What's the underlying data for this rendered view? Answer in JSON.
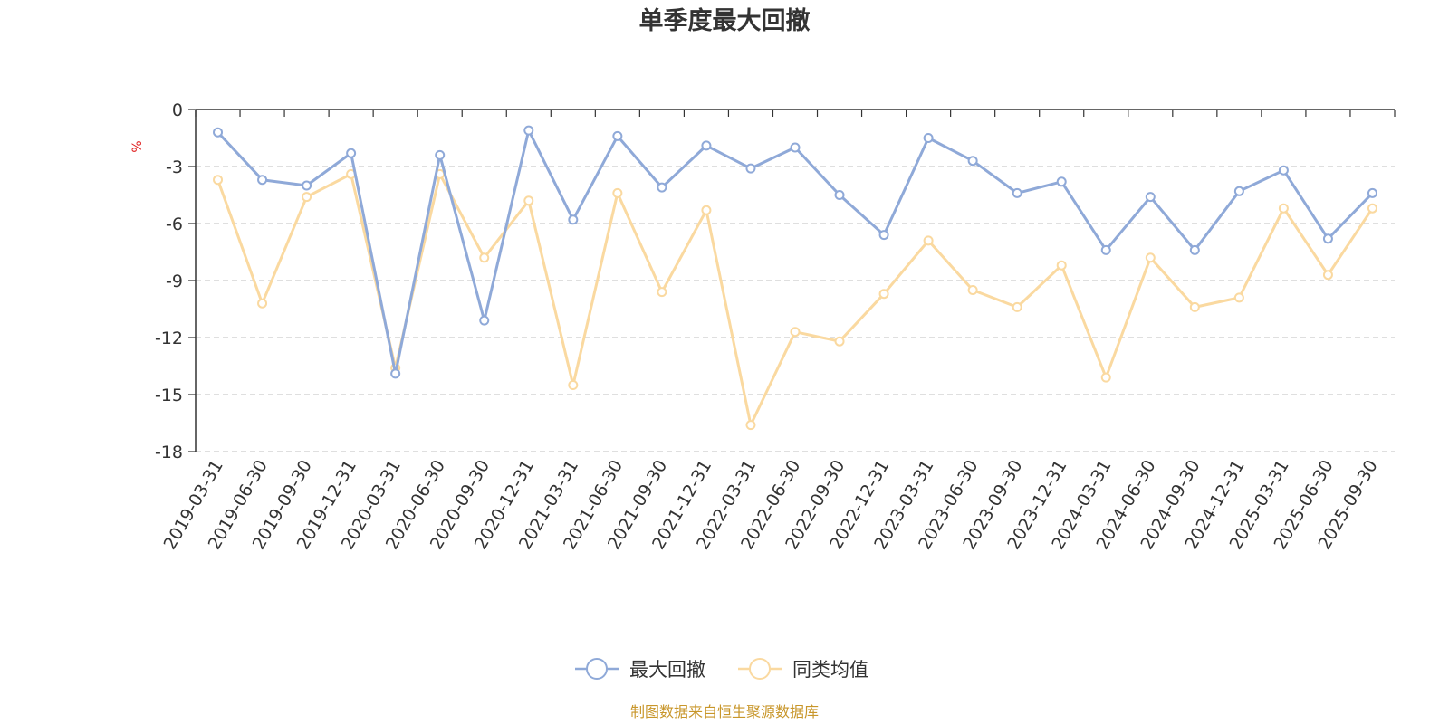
{
  "chart_data": {
    "type": "line",
    "title": "单季度最大回撤",
    "ylabel": "%",
    "xlabel": "",
    "ylim": [
      -18,
      0
    ],
    "yticks": [
      0,
      -3,
      -6,
      -9,
      -12,
      -15,
      -18
    ],
    "grid": true,
    "legend_position": "bottom-center",
    "categories": [
      "2019-03-31",
      "2019-06-30",
      "2019-09-30",
      "2019-12-31",
      "2020-03-31",
      "2020-06-30",
      "2020-09-30",
      "2020-12-31",
      "2021-03-31",
      "2021-06-30",
      "2021-09-30",
      "2021-12-31",
      "2022-03-31",
      "2022-06-30",
      "2022-09-30",
      "2022-12-31",
      "2023-03-31",
      "2023-06-30",
      "2023-09-30",
      "2023-12-31",
      "2024-03-31",
      "2024-06-30",
      "2024-09-30",
      "2024-12-31",
      "2025-03-31",
      "2025-06-30",
      "2025-09-30"
    ],
    "series": [
      {
        "name": "最大回撤",
        "color": "#8fa9d8",
        "values": [
          -1.2,
          -3.7,
          -4.0,
          -2.3,
          -13.9,
          -2.4,
          -11.1,
          -1.1,
          -5.8,
          -1.4,
          -4.1,
          -1.9,
          -3.1,
          -2.0,
          -4.5,
          -6.6,
          -1.5,
          -2.7,
          -4.4,
          -3.8,
          -7.4,
          -4.6,
          -7.4,
          -4.3,
          -3.2,
          -6.8,
          -4.4
        ]
      },
      {
        "name": "同类均值",
        "color": "#fad9a0",
        "values": [
          -3.7,
          -10.2,
          -4.6,
          -3.4,
          -13.6,
          -3.4,
          -7.8,
          -4.8,
          -14.5,
          -4.4,
          -9.6,
          -5.3,
          -16.6,
          -11.7,
          -12.2,
          -9.7,
          -6.9,
          -9.5,
          -10.4,
          -8.2,
          -14.1,
          -7.8,
          -10.4,
          -9.9,
          -5.2,
          -8.7,
          -5.2
        ]
      }
    ]
  },
  "footer": {
    "source": "制图数据来自恒生聚源数据库"
  }
}
